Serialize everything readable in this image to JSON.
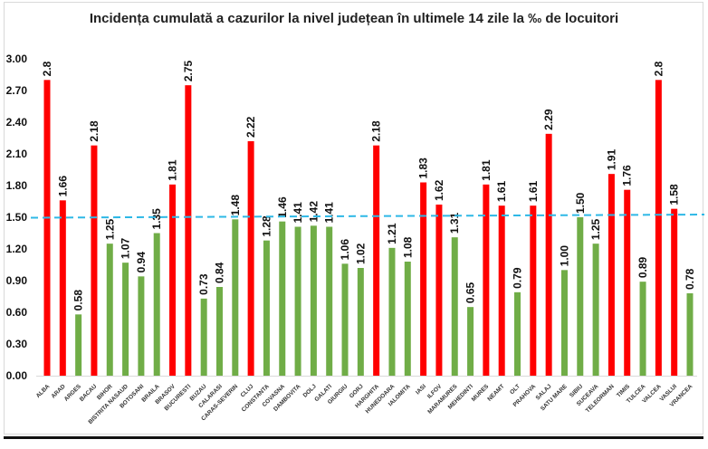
{
  "chart_data": {
    "type": "bar",
    "title": "Incidența cumulată a cazurilor la nivel județean în ultimele 14 zile la ‰ de locuitori",
    "xlabel": "",
    "ylabel": "",
    "ylim": [
      0,
      3.0
    ],
    "yticks": [
      "0.00",
      "0.30",
      "0.60",
      "0.90",
      "1.20",
      "1.50",
      "1.80",
      "2.10",
      "2.40",
      "2.70",
      "3.00"
    ],
    "grid": false,
    "threshold": 1.5,
    "colors": {
      "above": "#ff0000",
      "below": "#70ad47",
      "threshold_line": "#2eb8e6"
    },
    "categories": [
      "ALBA",
      "ARAD",
      "ARGES",
      "BACAU",
      "BIHOR",
      "BISTRITA NASAUD",
      "BOTOSANI",
      "BRAILA",
      "BRASOV",
      "BUCURESTI",
      "BUZAU",
      "CALARASI",
      "CARAS-SEVERIN",
      "CLUJ",
      "CONSTANTA",
      "COVASNA",
      "DAMBOVITA",
      "DOLJ",
      "GALATI",
      "GIURGIU",
      "GORJ",
      "HARGHITA",
      "HUNEDOARA",
      "IALOMITA",
      "IASI",
      "ILFOV",
      "MARAMURES",
      "MEHEDINTI",
      "MURES",
      "NEAMT",
      "OLT",
      "PRAHOVA",
      "SALAJ",
      "SATU MARE",
      "SIBIU",
      "SUCEAVA",
      "TELEORMAN",
      "TIMIS",
      "TULCEA",
      "VALCEA",
      "VASLUI",
      "VRANCEA"
    ],
    "values": [
      2.8,
      1.66,
      0.58,
      2.18,
      1.25,
      1.07,
      0.94,
      1.35,
      1.81,
      2.75,
      0.73,
      0.84,
      1.48,
      2.22,
      1.28,
      1.46,
      1.41,
      1.42,
      1.41,
      1.06,
      1.02,
      2.18,
      1.21,
      1.08,
      1.83,
      1.62,
      1.31,
      0.65,
      1.81,
      1.61,
      0.79,
      1.61,
      2.29,
      1.0,
      1.5,
      1.25,
      1.91,
      1.76,
      0.89,
      2.8,
      1.58,
      0.78
    ],
    "labels": [
      "2.8",
      "1.66",
      "0.58",
      "2.18",
      "1.25",
      "1.07",
      "0.94",
      "1.35",
      "1.81",
      "2.75",
      "0.73",
      "0.84",
      "1.48",
      "2.22",
      "1.28",
      "1.46",
      "1.41",
      "1.42",
      "1.41",
      "1.06",
      "1.02",
      "2.18",
      "1.21",
      "1.08",
      "1.83",
      "1.62",
      "1.31",
      "0.65",
      "1.81",
      "1.61",
      "0.79",
      "1.61",
      "2.29",
      "1.00",
      "1.50",
      "1.25",
      "1.91",
      "1.76",
      "0.89",
      "2.8",
      "1.58",
      "0.78"
    ]
  }
}
